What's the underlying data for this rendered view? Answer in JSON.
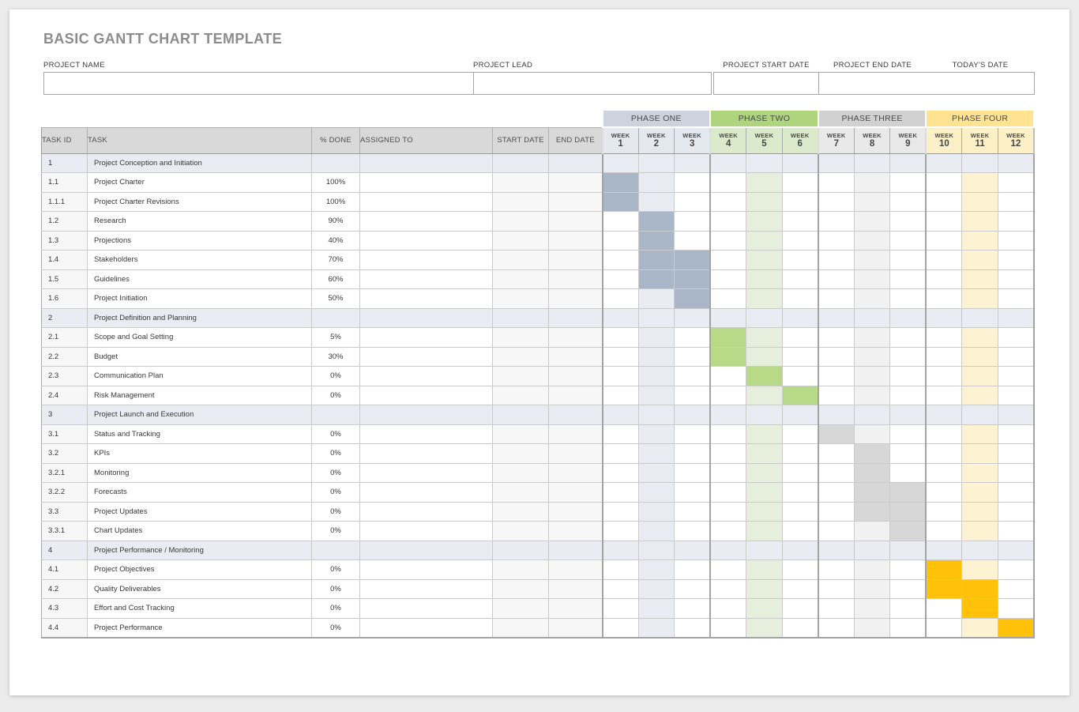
{
  "title": "BASIC GANTT CHART TEMPLATE",
  "form": {
    "fields": [
      {
        "label": "PROJECT NAME",
        "value": ""
      },
      {
        "label": "PROJECT LEAD",
        "value": ""
      },
      {
        "label": "PROJECT START DATE",
        "value": ""
      },
      {
        "label": "PROJECT END DATE",
        "value": ""
      },
      {
        "label": "TODAY'S DATE",
        "value": ""
      }
    ]
  },
  "columns": [
    "TASK ID",
    "TASK",
    "% DONE",
    "ASSIGNED TO",
    "START DATE",
    "END DATE"
  ],
  "week_label": "WEEK",
  "phases": [
    {
      "name": "PHASE ONE",
      "weeks": [
        1,
        2,
        3
      ],
      "header_bg": "#ccd3dd",
      "week_bg": "#e4e8ef",
      "bar": "#a9b7c8",
      "tint": "#e9edf3"
    },
    {
      "name": "PHASE TWO",
      "weeks": [
        4,
        5,
        6
      ],
      "header_bg": "#aed47e",
      "week_bg": "#dbeacb",
      "bar": "#b8d988",
      "tint": "#e5efdc"
    },
    {
      "name": "PHASE THREE",
      "weeks": [
        7,
        8,
        9
      ],
      "header_bg": "#d1d1d1",
      "week_bg": "#e9e9e9",
      "bar": "#d7d7d7",
      "tint": "#f1f1f1"
    },
    {
      "name": "PHASE FOUR",
      "weeks": [
        10,
        11,
        12
      ],
      "header_bg": "#ffe390",
      "week_bg": "#fcf0c6",
      "bar": "#ffc10a",
      "tint": "#fdf2d1"
    }
  ],
  "tint_weeks": [
    2,
    5,
    8,
    11
  ],
  "section_row_bg": "#e9ecf2",
  "rows": [
    {
      "id": "1",
      "task": "Project Conception and Initiation",
      "done": "",
      "section": true,
      "bars": []
    },
    {
      "id": "1.1",
      "task": "Project Charter",
      "done": "100%",
      "section": false,
      "bars": [
        1
      ]
    },
    {
      "id": "1.1.1",
      "task": "Project Charter Revisions",
      "done": "100%",
      "section": false,
      "bars": [
        1
      ]
    },
    {
      "id": "1.2",
      "task": "Research",
      "done": "90%",
      "section": false,
      "bars": [
        2
      ]
    },
    {
      "id": "1.3",
      "task": "Projections",
      "done": "40%",
      "section": false,
      "bars": [
        2
      ]
    },
    {
      "id": "1.4",
      "task": "Stakeholders",
      "done": "70%",
      "section": false,
      "bars": [
        2,
        3
      ]
    },
    {
      "id": "1.5",
      "task": "Guidelines",
      "done": "60%",
      "section": false,
      "bars": [
        2,
        3
      ]
    },
    {
      "id": "1.6",
      "task": "Project Initiation",
      "done": "50%",
      "section": false,
      "bars": [
        3
      ]
    },
    {
      "id": "2",
      "task": "Project Definition and Planning",
      "done": "",
      "section": true,
      "bars": []
    },
    {
      "id": "2.1",
      "task": "Scope and Goal Setting",
      "done": "5%",
      "section": false,
      "bars": [
        4
      ]
    },
    {
      "id": "2.2",
      "task": "Budget",
      "done": "30%",
      "section": false,
      "bars": [
        4
      ]
    },
    {
      "id": "2.3",
      "task": "Communication Plan",
      "done": "0%",
      "section": false,
      "bars": [
        5
      ]
    },
    {
      "id": "2.4",
      "task": "Risk Management",
      "done": "0%",
      "section": false,
      "bars": [
        6
      ]
    },
    {
      "id": "3",
      "task": "Project Launch and Execution",
      "done": "",
      "section": true,
      "bars": []
    },
    {
      "id": "3.1",
      "task": "Status and Tracking",
      "done": "0%",
      "section": false,
      "bars": [
        7
      ]
    },
    {
      "id": "3.2",
      "task": "KPIs",
      "done": "0%",
      "section": false,
      "bars": [
        8
      ]
    },
    {
      "id": "3.2.1",
      "task": "Monitoring",
      "done": "0%",
      "section": false,
      "bars": [
        8
      ]
    },
    {
      "id": "3.2.2",
      "task": "Forecasts",
      "done": "0%",
      "section": false,
      "bars": [
        8,
        9
      ]
    },
    {
      "id": "3.3",
      "task": "Project Updates",
      "done": "0%",
      "section": false,
      "bars": [
        8,
        9
      ]
    },
    {
      "id": "3.3.1",
      "task": "Chart Updates",
      "done": "0%",
      "section": false,
      "bars": [
        9
      ]
    },
    {
      "id": "4",
      "task": "Project Performance / Monitoring",
      "done": "",
      "section": true,
      "bars": []
    },
    {
      "id": "4.1",
      "task": "Project Objectives",
      "done": "0%",
      "section": false,
      "bars": [
        10
      ]
    },
    {
      "id": "4.2",
      "task": "Quality Deliverables",
      "done": "0%",
      "section": false,
      "bars": [
        10,
        11
      ]
    },
    {
      "id": "4.3",
      "task": "Effort and Cost Tracking",
      "done": "0%",
      "section": false,
      "bars": [
        11
      ]
    },
    {
      "id": "4.4",
      "task": "Project Performance",
      "done": "0%",
      "section": false,
      "bars": [
        12
      ]
    }
  ]
}
